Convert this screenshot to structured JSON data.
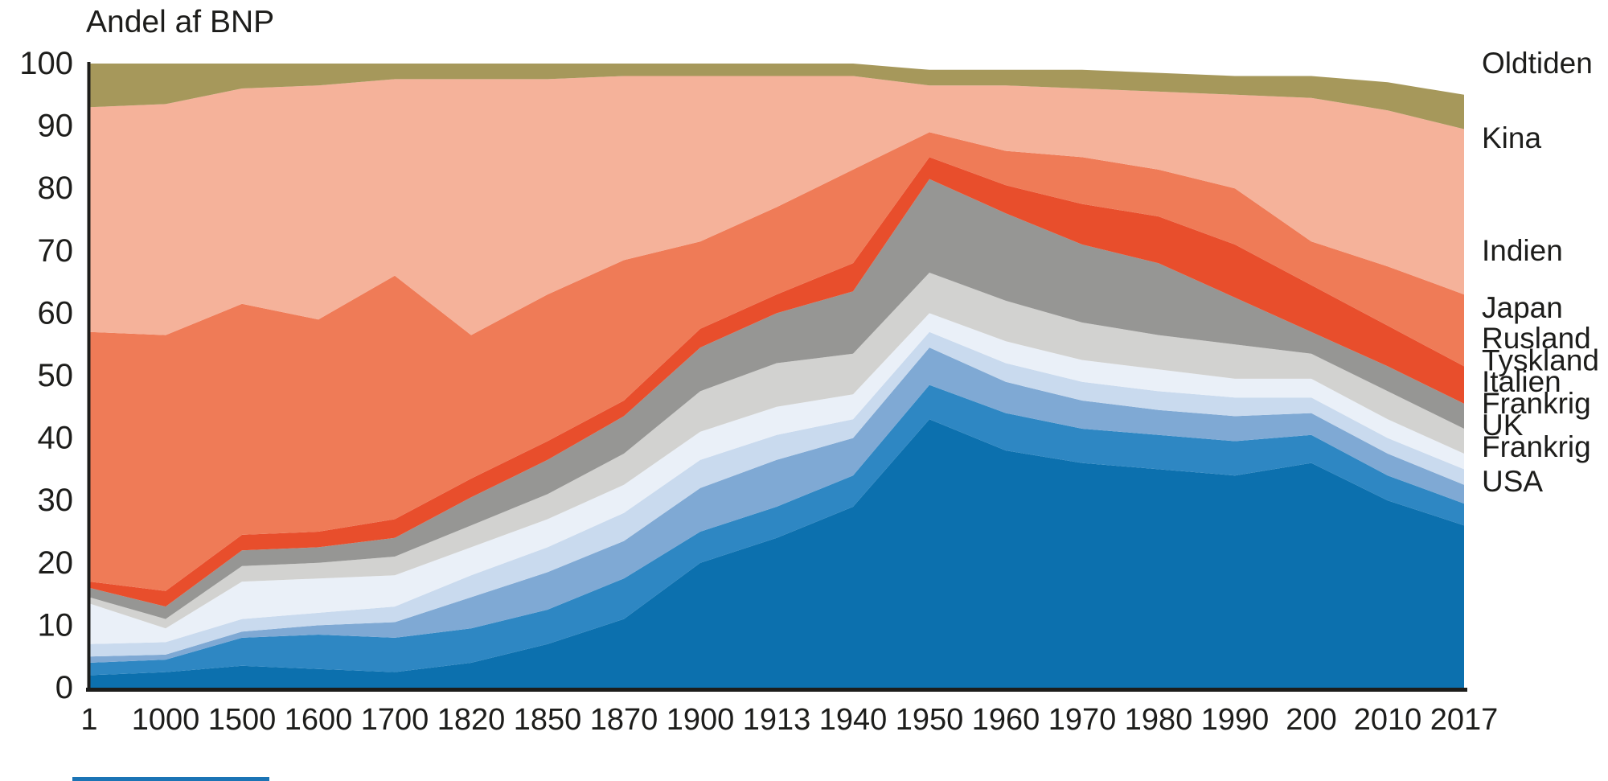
{
  "title": "Andel af BNP",
  "colors": {
    "text": "#1d1d1b",
    "axis": "#1d1d1b",
    "background": "#ffffff",
    "footer_bar": "#1b74b5"
  },
  "chart_data": {
    "type": "area",
    "stacked": true,
    "title": "Andel af BNP",
    "ylabel": "Andel af BNP (pct.)",
    "ylim": [
      0,
      100
    ],
    "grid": false,
    "legend_position": "right",
    "y_ticks": [
      "0",
      "10",
      "20",
      "30",
      "40",
      "50",
      "60",
      "70",
      "80",
      "90",
      "100"
    ],
    "categories": [
      "1",
      "1000",
      "1500",
      "1600",
      "1700",
      "1820",
      "1850",
      "1870",
      "1900",
      "1913",
      "1940",
      "1950",
      "1960",
      "1970",
      "1980",
      "1990",
      "200",
      "2010",
      "2017"
    ],
    "series": [
      {
        "name": "USA",
        "color": "#0c70ae",
        "values": [
          2,
          2.5,
          3.5,
          3,
          2.5,
          4,
          7,
          11,
          20,
          24,
          29,
          43,
          38,
          36,
          35,
          34,
          36,
          30,
          26
        ]
      },
      {
        "name": "Frankrig",
        "color": "#2e87c3",
        "values": [
          2,
          2,
          4.5,
          5.5,
          5.5,
          5.5,
          5.5,
          6.5,
          5,
          5,
          5,
          5.5,
          6,
          5.5,
          5.5,
          5.5,
          4.5,
          4,
          3.5
        ]
      },
      {
        "name": "UK",
        "color": "#7fa9d4",
        "values": [
          1,
          0.8,
          1,
          1.5,
          2.5,
          5,
          6,
          6,
          7,
          7.5,
          6,
          6,
          5,
          4.5,
          4,
          4,
          3.5,
          3.5,
          3
        ]
      },
      {
        "name": "Frankrig",
        "color": "#c9daee",
        "values": [
          2,
          2,
          2,
          2,
          2.5,
          3.5,
          4,
          4.5,
          4.5,
          4,
          3,
          2.5,
          3,
          3,
          3,
          3,
          2.5,
          2.5,
          2.5
        ]
      },
      {
        "name": "Italien",
        "color": "#eaf0f8",
        "values": [
          6.5,
          2.2,
          6,
          5.5,
          5,
          4.5,
          4.5,
          4.5,
          4.5,
          4.5,
          4,
          3,
          3.5,
          3.5,
          3.5,
          3,
          3,
          3,
          2.5
        ]
      },
      {
        "name": "Tyskland",
        "color": "#d2d2d0",
        "values": [
          1,
          1.5,
          2.5,
          2.5,
          3,
          3.5,
          4,
          5,
          6.5,
          7,
          6.5,
          6.5,
          6.5,
          6,
          5.5,
          5.5,
          4,
          4.5,
          4
        ]
      },
      {
        "name": "Rusland",
        "color": "#969694",
        "values": [
          1.5,
          2,
          2.5,
          2.5,
          3,
          4.5,
          5.5,
          6,
          7,
          8,
          10,
          15,
          14,
          12.5,
          11.5,
          7.5,
          3.5,
          4,
          4
        ]
      },
      {
        "name": "Japan",
        "color": "#e84e2c",
        "values": [
          1,
          2.5,
          2.5,
          2.5,
          3,
          3,
          3,
          2.5,
          3,
          3,
          4.5,
          3.5,
          4.5,
          6.5,
          7.5,
          8.5,
          7.5,
          6.5,
          6
        ]
      },
      {
        "name": "Indien",
        "color": "#ef7b57",
        "values": [
          40,
          41,
          37,
          34,
          39,
          23,
          23.5,
          22.5,
          14,
          14,
          15,
          4,
          5.5,
          7.5,
          7.5,
          9,
          7,
          9.5,
          11.5
        ]
      },
      {
        "name": "Kina",
        "color": "#f5b29a",
        "values": [
          36,
          37,
          34.5,
          37.5,
          31.5,
          41,
          34.5,
          29.5,
          26.5,
          21,
          15,
          7.5,
          10.5,
          11,
          12.5,
          15,
          23,
          25,
          26.5
        ]
      },
      {
        "name": "Oldtiden",
        "color": "#a6985b",
        "values": [
          7,
          6.5,
          4,
          3.5,
          2.5,
          2.5,
          2.5,
          2,
          2,
          2,
          2,
          2.5,
          2.5,
          3,
          3,
          3,
          3.5,
          4.5,
          5.5
        ]
      }
    ],
    "right_labels": [
      {
        "text": "Oldtiden",
        "v": 100
      },
      {
        "text": "Kina",
        "v": 88
      },
      {
        "text": "Indien",
        "v": 70
      },
      {
        "text": "Japan",
        "v": 60.8
      },
      {
        "text": "Rusland",
        "v": 55.9
      },
      {
        "text": "Tyskland",
        "v": 52.4
      },
      {
        "text": "Italien",
        "v": 49.0
      },
      {
        "text": "Frankrig",
        "v": 45.5
      },
      {
        "text": "UK",
        "v": 42.0
      },
      {
        "text": "Frankrig",
        "v": 38.5
      },
      {
        "text": "USA",
        "v": 33.0
      }
    ]
  },
  "layout_text": {}
}
